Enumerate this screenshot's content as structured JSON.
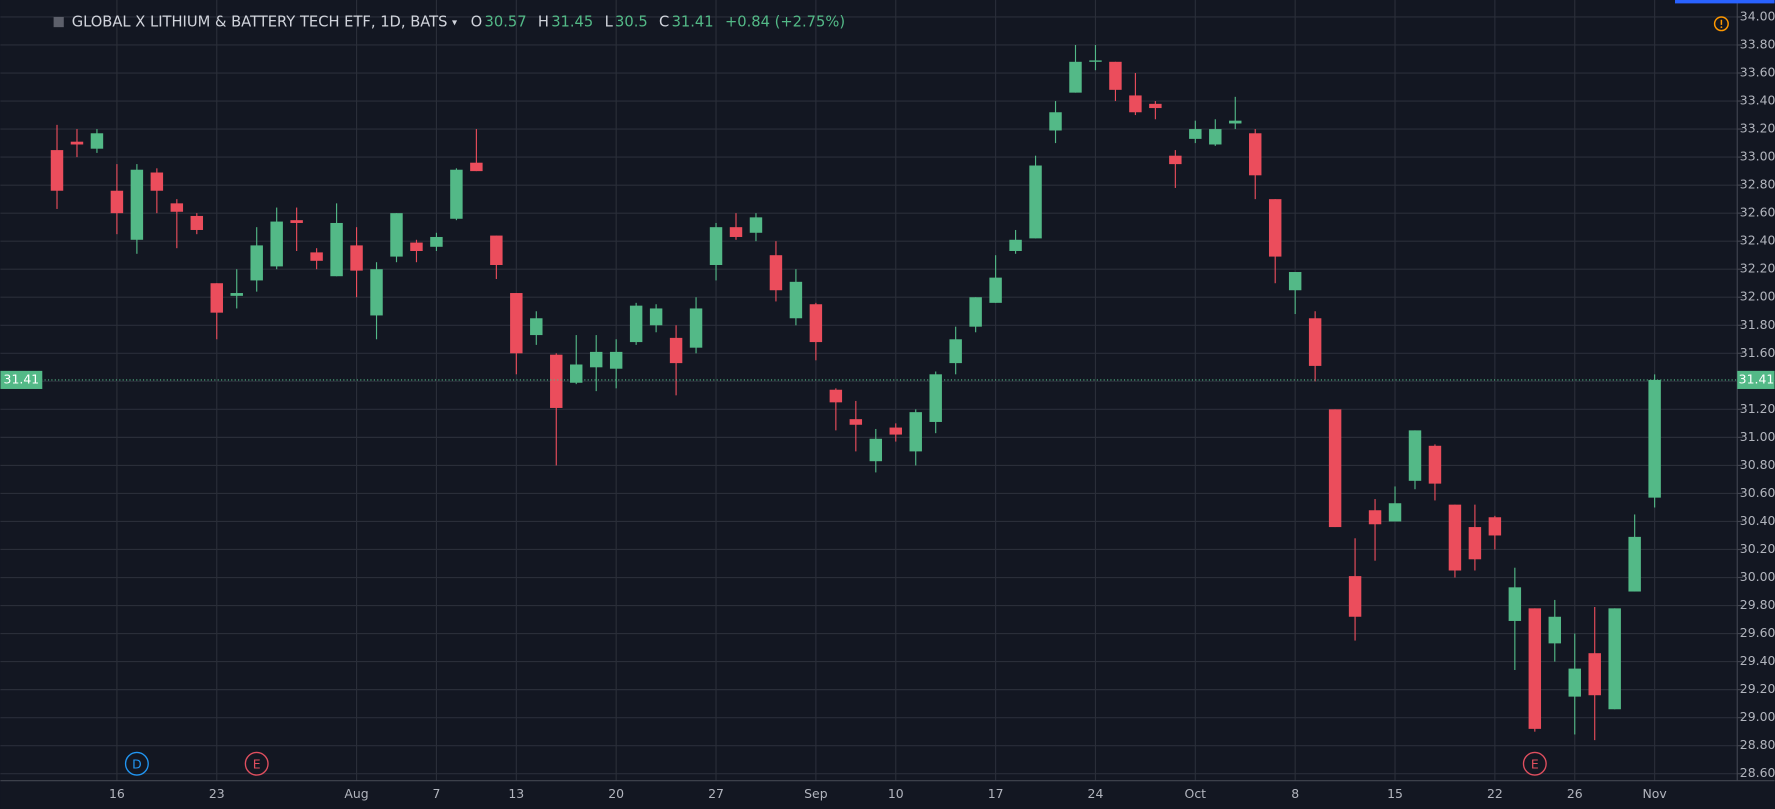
{
  "chart_data": {
    "type": "candlestick",
    "title": "GLOBAL X LITHIUM & BATTERY TECH ETF, 1D, BATS",
    "ohlc_labels": [
      "O",
      "H",
      "L",
      "C"
    ],
    "change": "+0.84 (+2.75%)",
    "up_color": "#53b987",
    "down_color": "#eb4d5c",
    "grid": true,
    "ylim": [
      28.55,
      34.05
    ],
    "yticks": [
      {
        "value": 28.6,
        "label": "28.60"
      },
      {
        "value": 28.8,
        "label": "28.80"
      },
      {
        "value": 29,
        "label": "29.00"
      },
      {
        "value": 29.2,
        "label": "29.20"
      },
      {
        "value": 29.4,
        "label": "29.40"
      },
      {
        "value": 29.6,
        "label": "29.60"
      },
      {
        "value": 29.8,
        "label": "29.80"
      },
      {
        "value": 30,
        "label": "30.00"
      },
      {
        "value": 30.2,
        "label": "30.20"
      },
      {
        "value": 30.4,
        "label": "30.40"
      },
      {
        "value": 30.6,
        "label": "30.60"
      },
      {
        "value": 30.8,
        "label": "30.80"
      },
      {
        "value": 31,
        "label": "31.00"
      },
      {
        "value": 31.2,
        "label": "31.20"
      },
      {
        "value": 31.4,
        "label": "31.40"
      },
      {
        "value": 31.6,
        "label": "31.60"
      },
      {
        "value": 31.8,
        "label": "31.80"
      },
      {
        "value": 32,
        "label": "32.00"
      },
      {
        "value": 32.2,
        "label": "32.20"
      },
      {
        "value": 32.4,
        "label": "32.40"
      },
      {
        "value": 32.6,
        "label": "32.60"
      },
      {
        "value": 32.8,
        "label": "32.80"
      },
      {
        "value": 33,
        "label": "33.00"
      },
      {
        "value": 33.2,
        "label": "33.20"
      },
      {
        "value": 33.4,
        "label": "33.40"
      },
      {
        "value": 33.6,
        "label": "33.60"
      },
      {
        "value": 33.8,
        "label": "33.80"
      },
      {
        "value": 34,
        "label": "34.00"
      }
    ],
    "categories": [
      null,
      null,
      null,
      "16",
      null,
      null,
      null,
      null,
      "23",
      null,
      null,
      null,
      null,
      null,
      null,
      "Aug",
      null,
      null,
      null,
      "7",
      null,
      null,
      null,
      "13",
      null,
      null,
      null,
      null,
      "20",
      null,
      null,
      null,
      null,
      "27",
      null,
      null,
      null,
      null,
      "Sep",
      null,
      null,
      null,
      "10",
      null,
      null,
      null,
      null,
      "17",
      null,
      null,
      null,
      null,
      "24",
      null,
      null,
      null,
      null,
      "Oct",
      null,
      null,
      null,
      null,
      "8",
      null,
      null,
      null,
      null,
      "15",
      null,
      null,
      null,
      null,
      "22",
      null,
      null,
      null,
      "26",
      null,
      null,
      null,
      "Nov"
    ],
    "open": [
      33.05,
      33.11,
      33.06,
      32.76,
      32.41,
      32.89,
      32.67,
      32.58,
      32.1,
      32.01,
      32.12,
      32.22,
      32.55,
      32.32,
      32.15,
      32.37,
      31.87,
      32.29,
      32.39,
      32.36,
      32.56,
      32.96,
      32.44,
      32.03,
      31.73,
      31.59,
      31.39,
      31.5,
      31.49,
      31.68,
      31.8,
      31.71,
      31.64,
      32.23,
      32.5,
      32.46,
      32.3,
      31.85,
      31.95,
      31.34,
      31.13,
      30.83,
      31.07,
      30.9,
      31.11,
      31.53,
      31.79,
      31.96,
      32.33,
      32.42,
      33.19,
      33.46,
      33.68,
      33.68,
      33.44,
      33.38,
      33.01,
      33.13,
      33.09,
      33.24,
      33.17,
      32.7,
      32.05,
      31.85,
      31.2,
      30.01,
      30.48,
      30.4,
      30.69,
      30.94,
      30.52,
      30.36,
      30.43,
      29.69,
      29.78,
      29.53,
      29.15,
      29.46,
      29.06,
      29.9,
      30.57
    ],
    "high": [
      33.23,
      33.2,
      33.2,
      32.95,
      32.95,
      32.92,
      32.7,
      32.6,
      32.1,
      32.2,
      32.5,
      32.64,
      32.64,
      32.35,
      32.67,
      32.5,
      32.25,
      32.6,
      32.41,
      32.46,
      32.92,
      33.2,
      32.44,
      32.03,
      31.9,
      31.6,
      31.73,
      31.73,
      31.7,
      31.96,
      31.95,
      31.8,
      32.0,
      32.53,
      32.6,
      32.6,
      32.4,
      32.2,
      31.96,
      31.35,
      31.26,
      31.06,
      31.1,
      31.2,
      31.47,
      31.79,
      32.0,
      32.3,
      32.48,
      33.01,
      33.4,
      33.8,
      33.8,
      33.68,
      33.6,
      33.4,
      33.05,
      33.26,
      33.27,
      33.43,
      33.2,
      32.7,
      32.18,
      31.9,
      31.2,
      30.28,
      30.56,
      30.65,
      31.05,
      30.95,
      30.52,
      30.52,
      30.44,
      30.07,
      29.78,
      29.84,
      29.6,
      29.79,
      29.78,
      30.45,
      31.45
    ],
    "low": [
      32.63,
      33.0,
      33.03,
      32.45,
      32.31,
      32.6,
      32.35,
      32.45,
      31.7,
      31.92,
      32.04,
      32.2,
      32.33,
      32.2,
      32.15,
      32.0,
      31.7,
      32.25,
      32.25,
      32.33,
      32.55,
      32.9,
      32.13,
      31.45,
      31.66,
      30.8,
      31.38,
      31.33,
      31.35,
      31.66,
      31.75,
      31.3,
      31.6,
      32.12,
      32.41,
      32.4,
      31.97,
      31.8,
      31.55,
      31.05,
      30.9,
      30.75,
      30.97,
      30.8,
      31.03,
      31.45,
      31.75,
      31.96,
      32.31,
      32.42,
      33.1,
      33.46,
      33.62,
      33.4,
      33.3,
      33.27,
      32.78,
      33.1,
      33.08,
      33.2,
      32.7,
      32.1,
      31.88,
      31.4,
      30.36,
      29.55,
      30.12,
      30.4,
      30.63,
      30.55,
      30.0,
      30.05,
      30.2,
      29.34,
      28.9,
      29.4,
      28.88,
      28.84,
      29.06,
      29.9,
      30.5
    ],
    "close": [
      32.76,
      33.09,
      33.17,
      32.6,
      32.91,
      32.76,
      32.61,
      32.48,
      31.89,
      32.03,
      32.37,
      32.54,
      32.53,
      32.26,
      32.53,
      32.19,
      32.2,
      32.6,
      32.33,
      32.43,
      32.91,
      32.9,
      32.23,
      31.6,
      31.85,
      31.21,
      31.52,
      31.61,
      31.61,
      31.94,
      31.92,
      31.53,
      31.92,
      32.5,
      32.43,
      32.57,
      32.05,
      32.11,
      31.68,
      31.25,
      31.09,
      30.99,
      31.02,
      31.18,
      31.45,
      31.7,
      32.0,
      32.14,
      32.41,
      32.94,
      33.32,
      33.68,
      33.69,
      33.48,
      33.32,
      33.35,
      32.95,
      33.2,
      33.2,
      33.26,
      32.87,
      32.29,
      32.18,
      31.51,
      30.36,
      29.72,
      30.38,
      30.53,
      31.05,
      30.67,
      30.05,
      30.13,
      30.3,
      29.93,
      28.92,
      29.72,
      29.35,
      29.16,
      29.78,
      30.29,
      31.41
    ],
    "events": [
      {
        "label": "D",
        "index": 4,
        "color": "#2196f3"
      },
      {
        "label": "E",
        "index": 10,
        "color": "#e04f5f"
      },
      {
        "label": "E",
        "index": 74,
        "color": "#e04f5f"
      }
    ]
  }
}
